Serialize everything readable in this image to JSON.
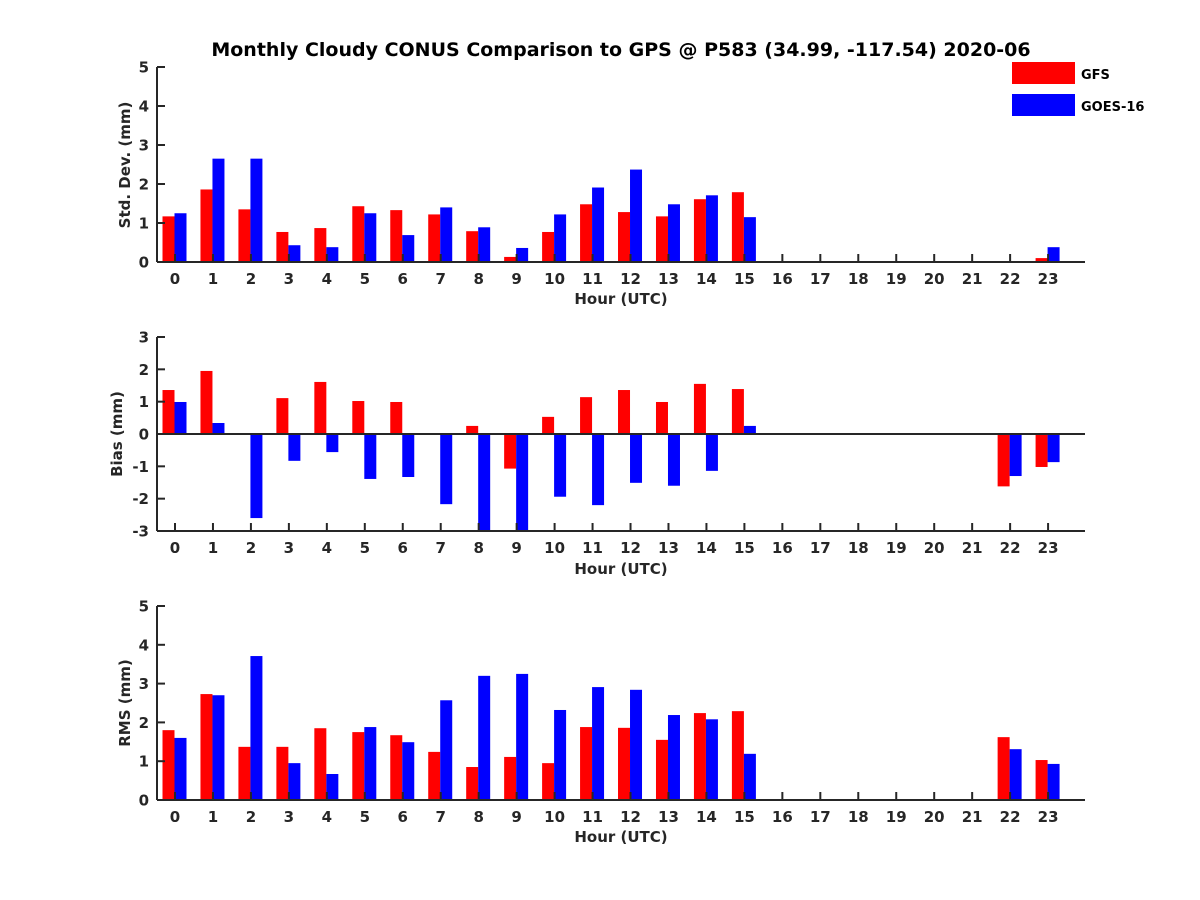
{
  "chart_data": {
    "type": "bar",
    "title": "Monthly Cloudy CONUS Comparison to GPS @ P583 (34.99, -117.54) 2020-06",
    "legend": {
      "placement": "top-right",
      "entries": [
        {
          "name": "GFS",
          "color": "#ff0000"
        },
        {
          "name": "GOES-16",
          "color": "#0000ff"
        }
      ]
    },
    "categories": [
      "0",
      "1",
      "2",
      "3",
      "4",
      "5",
      "6",
      "7",
      "8",
      "9",
      "10",
      "11",
      "12",
      "13",
      "14",
      "15",
      "16",
      "17",
      "18",
      "19",
      "20",
      "21",
      "22",
      "23"
    ],
    "panels": [
      {
        "name": "std-dev",
        "xlabel": "Hour (UTC)",
        "ylabel": "Std. Dev. (mm)",
        "ylim": [
          0,
          5
        ],
        "yticks": [
          0,
          1,
          2,
          3,
          4,
          5
        ],
        "series": [
          {
            "name": "GFS",
            "color": "#ff0000",
            "values": [
              1.17,
              1.86,
              1.35,
              0.77,
              0.87,
              1.43,
              1.33,
              1.22,
              0.79,
              0.13,
              0.77,
              1.48,
              1.28,
              1.17,
              1.61,
              1.79,
              null,
              null,
              null,
              null,
              null,
              null,
              null,
              0.1
            ]
          },
          {
            "name": "GOES-16",
            "color": "#0000ff",
            "values": [
              1.25,
              2.65,
              2.65,
              0.43,
              0.38,
              1.25,
              0.69,
              1.4,
              0.89,
              0.36,
              1.22,
              1.91,
              2.37,
              1.48,
              1.71,
              1.15,
              null,
              null,
              null,
              null,
              null,
              null,
              null,
              0.38
            ]
          }
        ]
      },
      {
        "name": "bias",
        "xlabel": "Hour (UTC)",
        "ylabel": "Bias (mm)",
        "ylim": [
          -3,
          3
        ],
        "yticks": [
          -3,
          -2,
          -1,
          0,
          1,
          2,
          3
        ],
        "series": [
          {
            "name": "GFS",
            "color": "#ff0000",
            "values": [
              1.36,
              1.95,
              0.0,
              1.11,
              1.61,
              1.02,
              0.99,
              0.03,
              0.25,
              -1.07,
              0.53,
              1.14,
              1.36,
              0.99,
              1.55,
              1.39,
              null,
              null,
              null,
              null,
              null,
              null,
              -1.62,
              -1.02
            ]
          },
          {
            "name": "GOES-16",
            "color": "#0000ff",
            "values": [
              0.99,
              0.34,
              -2.6,
              -0.83,
              -0.56,
              -1.39,
              -1.33,
              -2.17,
              -3.0,
              -3.0,
              -1.94,
              -2.2,
              -1.51,
              -1.6,
              -1.14,
              0.25,
              null,
              null,
              null,
              null,
              null,
              null,
              -1.3,
              -0.87
            ]
          }
        ]
      },
      {
        "name": "rms",
        "xlabel": "Hour (UTC)",
        "ylabel": "RMS (mm)",
        "ylim": [
          0,
          5
        ],
        "yticks": [
          0,
          1,
          2,
          3,
          4,
          5
        ],
        "series": [
          {
            "name": "GFS",
            "color": "#ff0000",
            "values": [
              1.8,
              2.73,
              1.37,
              1.37,
              1.85,
              1.75,
              1.67,
              1.24,
              0.85,
              1.11,
              0.95,
              1.88,
              1.86,
              1.55,
              2.24,
              2.29,
              null,
              null,
              null,
              null,
              null,
              null,
              1.62,
              1.03
            ]
          },
          {
            "name": "GOES-16",
            "color": "#0000ff",
            "values": [
              1.6,
              2.7,
              3.71,
              0.95,
              0.67,
              1.88,
              1.49,
              2.57,
              3.2,
              3.25,
              2.32,
              2.91,
              2.84,
              2.19,
              2.08,
              1.19,
              null,
              null,
              null,
              null,
              null,
              null,
              1.31,
              0.93
            ]
          }
        ]
      }
    ]
  }
}
